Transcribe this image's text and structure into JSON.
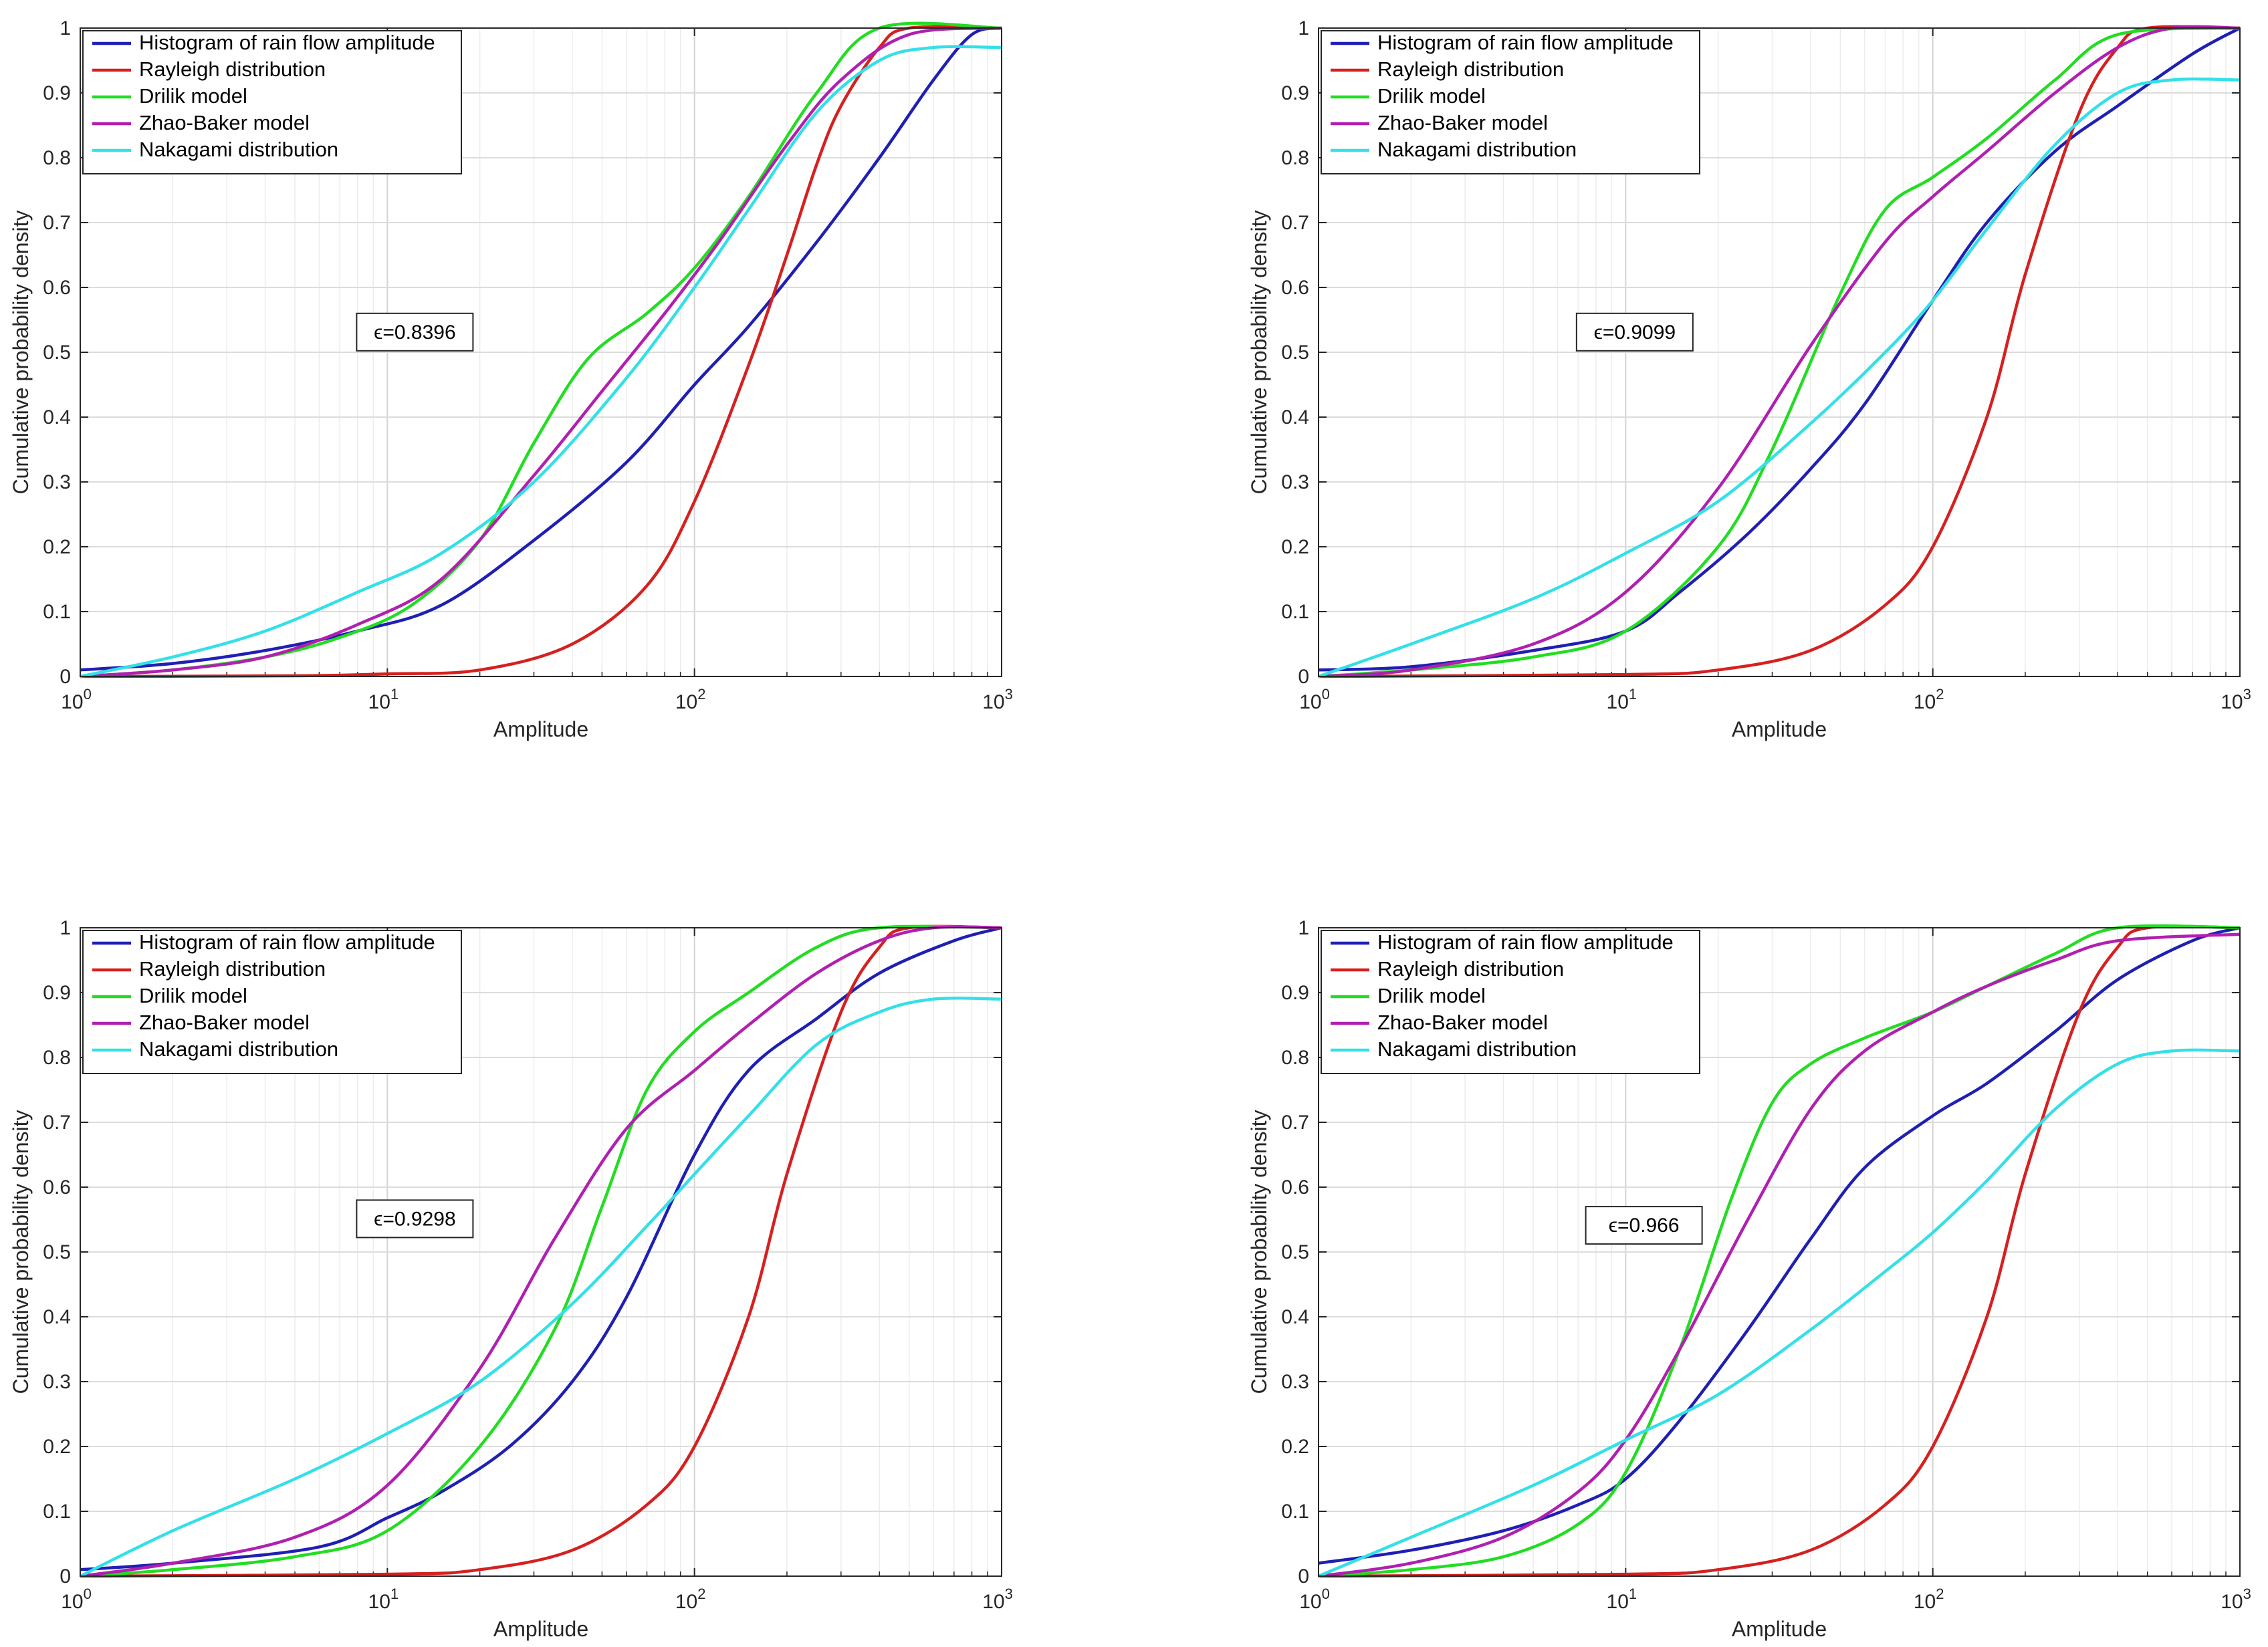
{
  "chart_data": [
    {
      "type": "line",
      "xscale": "log",
      "xlim": [
        1,
        1000
      ],
      "ylim": [
        0,
        1
      ],
      "xlabel": "Amplitude",
      "ylabel": "Cumulative probability density",
      "xticks": [
        "10^0",
        "10^1",
        "10^2",
        "10^3"
      ],
      "yticks": [
        "0",
        "0.1",
        "0.2",
        "0.3",
        "0.4",
        "0.5",
        "0.6",
        "0.7",
        "0.8",
        "0.9",
        "1"
      ],
      "grid": true,
      "legend_position": "top-left",
      "annotation": "ϵ=0.8396",
      "series": [
        {
          "name": "Histogram of rain flow amplitude",
          "color": "#1f1fb4",
          "x": [
            1,
            2,
            4,
            8,
            15,
            30,
            60,
            100,
            150,
            250,
            400,
            600,
            800,
            1000
          ],
          "y": [
            0.01,
            0.02,
            0.04,
            0.07,
            0.11,
            0.21,
            0.33,
            0.45,
            0.54,
            0.67,
            0.8,
            0.92,
            0.99,
            1.0
          ]
        },
        {
          "name": "Rayleigh distribution",
          "color": "#d62020",
          "x": [
            1,
            5,
            10,
            20,
            40,
            70,
            100,
            150,
            200,
            250,
            300,
            400,
            500,
            1000
          ],
          "y": [
            0.0,
            0.001,
            0.004,
            0.01,
            0.05,
            0.14,
            0.27,
            0.48,
            0.65,
            0.79,
            0.88,
            0.97,
            1.0,
            1.0
          ]
        },
        {
          "name": "Drilik model",
          "color": "#22dd22",
          "x": [
            1,
            2,
            4,
            7,
            12,
            20,
            30,
            45,
            70,
            100,
            150,
            250,
            400,
            1000
          ],
          "y": [
            0.0,
            0.01,
            0.03,
            0.06,
            0.11,
            0.21,
            0.36,
            0.49,
            0.56,
            0.63,
            0.74,
            0.9,
            1.0,
            1.0
          ]
        },
        {
          "name": "Zhao-Baker model",
          "color": "#b020b0",
          "x": [
            1,
            2,
            4,
            8,
            15,
            30,
            50,
            80,
            120,
            200,
            300,
            500,
            1000
          ],
          "y": [
            0.0,
            0.01,
            0.03,
            0.08,
            0.15,
            0.31,
            0.44,
            0.56,
            0.67,
            0.82,
            0.92,
            0.99,
            1.0
          ]
        },
        {
          "name": "Nakagami distribution",
          "color": "#33e0e8",
          "x": [
            1,
            2,
            4,
            8,
            15,
            30,
            60,
            100,
            150,
            250,
            400,
            600,
            1000
          ],
          "y": [
            0.0,
            0.03,
            0.07,
            0.13,
            0.19,
            0.3,
            0.46,
            0.6,
            0.72,
            0.87,
            0.95,
            0.97,
            0.97
          ]
        }
      ]
    },
    {
      "type": "line",
      "xscale": "log",
      "xlim": [
        1,
        1000
      ],
      "ylim": [
        0,
        1
      ],
      "xlabel": "Amplitude",
      "ylabel": "Cumulative probability density",
      "xticks": [
        "10^0",
        "10^1",
        "10^2",
        "10^3"
      ],
      "yticks": [
        "0",
        "0.1",
        "0.2",
        "0.3",
        "0.4",
        "0.5",
        "0.6",
        "0.7",
        "0.8",
        "0.9",
        "1"
      ],
      "grid": true,
      "legend_position": "top-left",
      "annotation": "ϵ=0.9099",
      "series": [
        {
          "name": "Histogram of rain flow amplitude",
          "color": "#1f1fb4",
          "x": [
            1,
            2,
            5,
            10,
            15,
            25,
            40,
            60,
            100,
            150,
            250,
            400,
            700,
            1000
          ],
          "y": [
            0.01,
            0.015,
            0.04,
            0.07,
            0.13,
            0.22,
            0.32,
            0.42,
            0.58,
            0.7,
            0.81,
            0.88,
            0.96,
            1.0
          ]
        },
        {
          "name": "Rayleigh distribution",
          "color": "#d62020",
          "x": [
            1,
            10,
            20,
            40,
            70,
            100,
            150,
            200,
            300,
            400,
            500,
            1000
          ],
          "y": [
            0.0,
            0.003,
            0.01,
            0.04,
            0.11,
            0.2,
            0.4,
            0.62,
            0.87,
            0.97,
            1.0,
            1.0
          ]
        },
        {
          "name": "Drilik model",
          "color": "#22dd22",
          "x": [
            1,
            2,
            5,
            10,
            20,
            30,
            50,
            70,
            100,
            150,
            250,
            400,
            1000
          ],
          "y": [
            0.0,
            0.01,
            0.03,
            0.07,
            0.2,
            0.35,
            0.59,
            0.72,
            0.77,
            0.83,
            0.92,
            0.99,
            1.0
          ]
        },
        {
          "name": "Zhao-Baker model",
          "color": "#b020b0",
          "x": [
            1,
            2,
            5,
            10,
            20,
            40,
            70,
            100,
            150,
            250,
            400,
            600,
            1000
          ],
          "y": [
            0.0,
            0.01,
            0.05,
            0.13,
            0.29,
            0.51,
            0.67,
            0.74,
            0.81,
            0.9,
            0.97,
            1.0,
            1.0
          ]
        },
        {
          "name": "Nakagami distribution",
          "color": "#33e0e8",
          "x": [
            1,
            2,
            5,
            10,
            20,
            40,
            70,
            100,
            150,
            250,
            400,
            600,
            1000
          ],
          "y": [
            0.0,
            0.05,
            0.12,
            0.19,
            0.27,
            0.39,
            0.5,
            0.58,
            0.69,
            0.82,
            0.9,
            0.92,
            0.92
          ]
        }
      ]
    },
    {
      "type": "line",
      "xscale": "log",
      "xlim": [
        1,
        1000
      ],
      "ylim": [
        0,
        1
      ],
      "xlabel": "Amplitude",
      "ylabel": "Cumulative probability density",
      "xticks": [
        "10^0",
        "10^1",
        "10^2",
        "10^3"
      ],
      "yticks": [
        "0",
        "0.1",
        "0.2",
        "0.3",
        "0.4",
        "0.5",
        "0.6",
        "0.7",
        "0.8",
        "0.9",
        "1"
      ],
      "grid": true,
      "legend_position": "top-left",
      "annotation": "ϵ=0.9298",
      "series": [
        {
          "name": "Histogram of rain flow amplitude",
          "color": "#1f1fb4",
          "x": [
            1,
            2,
            6,
            10,
            15,
            25,
            40,
            60,
            100,
            150,
            250,
            400,
            700,
            1000
          ],
          "y": [
            0.01,
            0.02,
            0.045,
            0.09,
            0.13,
            0.2,
            0.3,
            0.43,
            0.65,
            0.78,
            0.86,
            0.93,
            0.98,
            1.0
          ]
        },
        {
          "name": "Rayleigh distribution",
          "color": "#d62020",
          "x": [
            1,
            10,
            20,
            40,
            70,
            100,
            150,
            200,
            300,
            400,
            500,
            1000
          ],
          "y": [
            0.0,
            0.003,
            0.01,
            0.04,
            0.11,
            0.2,
            0.4,
            0.62,
            0.87,
            0.97,
            1.0,
            1.0
          ]
        },
        {
          "name": "Drilik model",
          "color": "#22dd22",
          "x": [
            1,
            2,
            5,
            10,
            20,
            35,
            50,
            70,
            100,
            150,
            250,
            400,
            1000
          ],
          "y": [
            0.0,
            0.01,
            0.03,
            0.07,
            0.2,
            0.38,
            0.57,
            0.75,
            0.84,
            0.9,
            0.97,
            1.0,
            1.0
          ]
        },
        {
          "name": "Zhao-Baker model",
          "color": "#b020b0",
          "x": [
            1,
            2,
            5,
            10,
            20,
            35,
            60,
            100,
            150,
            250,
            400,
            600,
            1000
          ],
          "y": [
            0.0,
            0.02,
            0.06,
            0.14,
            0.32,
            0.52,
            0.69,
            0.78,
            0.85,
            0.93,
            0.98,
            1.0,
            1.0
          ]
        },
        {
          "name": "Nakagami distribution",
          "color": "#33e0e8",
          "x": [
            1,
            2,
            5,
            10,
            20,
            40,
            70,
            100,
            150,
            250,
            400,
            600,
            1000
          ],
          "y": [
            0.0,
            0.07,
            0.15,
            0.22,
            0.3,
            0.42,
            0.54,
            0.62,
            0.71,
            0.82,
            0.87,
            0.89,
            0.89
          ]
        }
      ]
    },
    {
      "type": "line",
      "xscale": "log",
      "xlim": [
        1,
        1000
      ],
      "ylim": [
        0,
        1
      ],
      "xlabel": "Amplitude",
      "ylabel": "Cumulative probability density",
      "xticks": [
        "10^0",
        "10^1",
        "10^2",
        "10^3"
      ],
      "yticks": [
        "0",
        "0.1",
        "0.2",
        "0.3",
        "0.4",
        "0.5",
        "0.6",
        "0.7",
        "0.8",
        "0.9",
        "1"
      ],
      "grid": true,
      "legend_position": "top-left",
      "annotation": "ϵ=0.966",
      "series": [
        {
          "name": "Histogram of rain flow amplitude",
          "color": "#1f1fb4",
          "x": [
            1,
            2,
            4,
            7,
            10,
            15,
            25,
            40,
            60,
            100,
            150,
            250,
            400,
            700,
            1000
          ],
          "y": [
            0.02,
            0.04,
            0.07,
            0.11,
            0.15,
            0.24,
            0.38,
            0.52,
            0.63,
            0.71,
            0.76,
            0.84,
            0.92,
            0.98,
            1.0
          ]
        },
        {
          "name": "Rayleigh distribution",
          "color": "#d62020",
          "x": [
            1,
            10,
            20,
            40,
            70,
            100,
            150,
            200,
            300,
            400,
            500,
            1000
          ],
          "y": [
            0.0,
            0.003,
            0.01,
            0.04,
            0.11,
            0.2,
            0.4,
            0.62,
            0.87,
            0.97,
            1.0,
            1.0
          ]
        },
        {
          "name": "Drilik model",
          "color": "#22dd22",
          "x": [
            1,
            2,
            4,
            7,
            10,
            15,
            22,
            30,
            40,
            60,
            100,
            150,
            250,
            400,
            1000
          ],
          "y": [
            0.0,
            0.01,
            0.03,
            0.08,
            0.16,
            0.35,
            0.58,
            0.73,
            0.79,
            0.83,
            0.87,
            0.91,
            0.96,
            1.0,
            1.0
          ]
        },
        {
          "name": "Zhao-Baker model",
          "color": "#b020b0",
          "x": [
            1,
            2,
            4,
            7,
            10,
            15,
            25,
            40,
            60,
            100,
            150,
            250,
            400,
            1000
          ],
          "y": [
            0.0,
            0.02,
            0.06,
            0.13,
            0.21,
            0.35,
            0.55,
            0.72,
            0.81,
            0.87,
            0.91,
            0.95,
            0.98,
            0.99
          ]
        },
        {
          "name": "Nakagami distribution",
          "color": "#33e0e8",
          "x": [
            1,
            2,
            5,
            10,
            20,
            40,
            70,
            100,
            150,
            250,
            400,
            600,
            1000
          ],
          "y": [
            0.0,
            0.06,
            0.14,
            0.21,
            0.28,
            0.38,
            0.47,
            0.53,
            0.61,
            0.72,
            0.79,
            0.81,
            0.81
          ]
        }
      ]
    }
  ]
}
